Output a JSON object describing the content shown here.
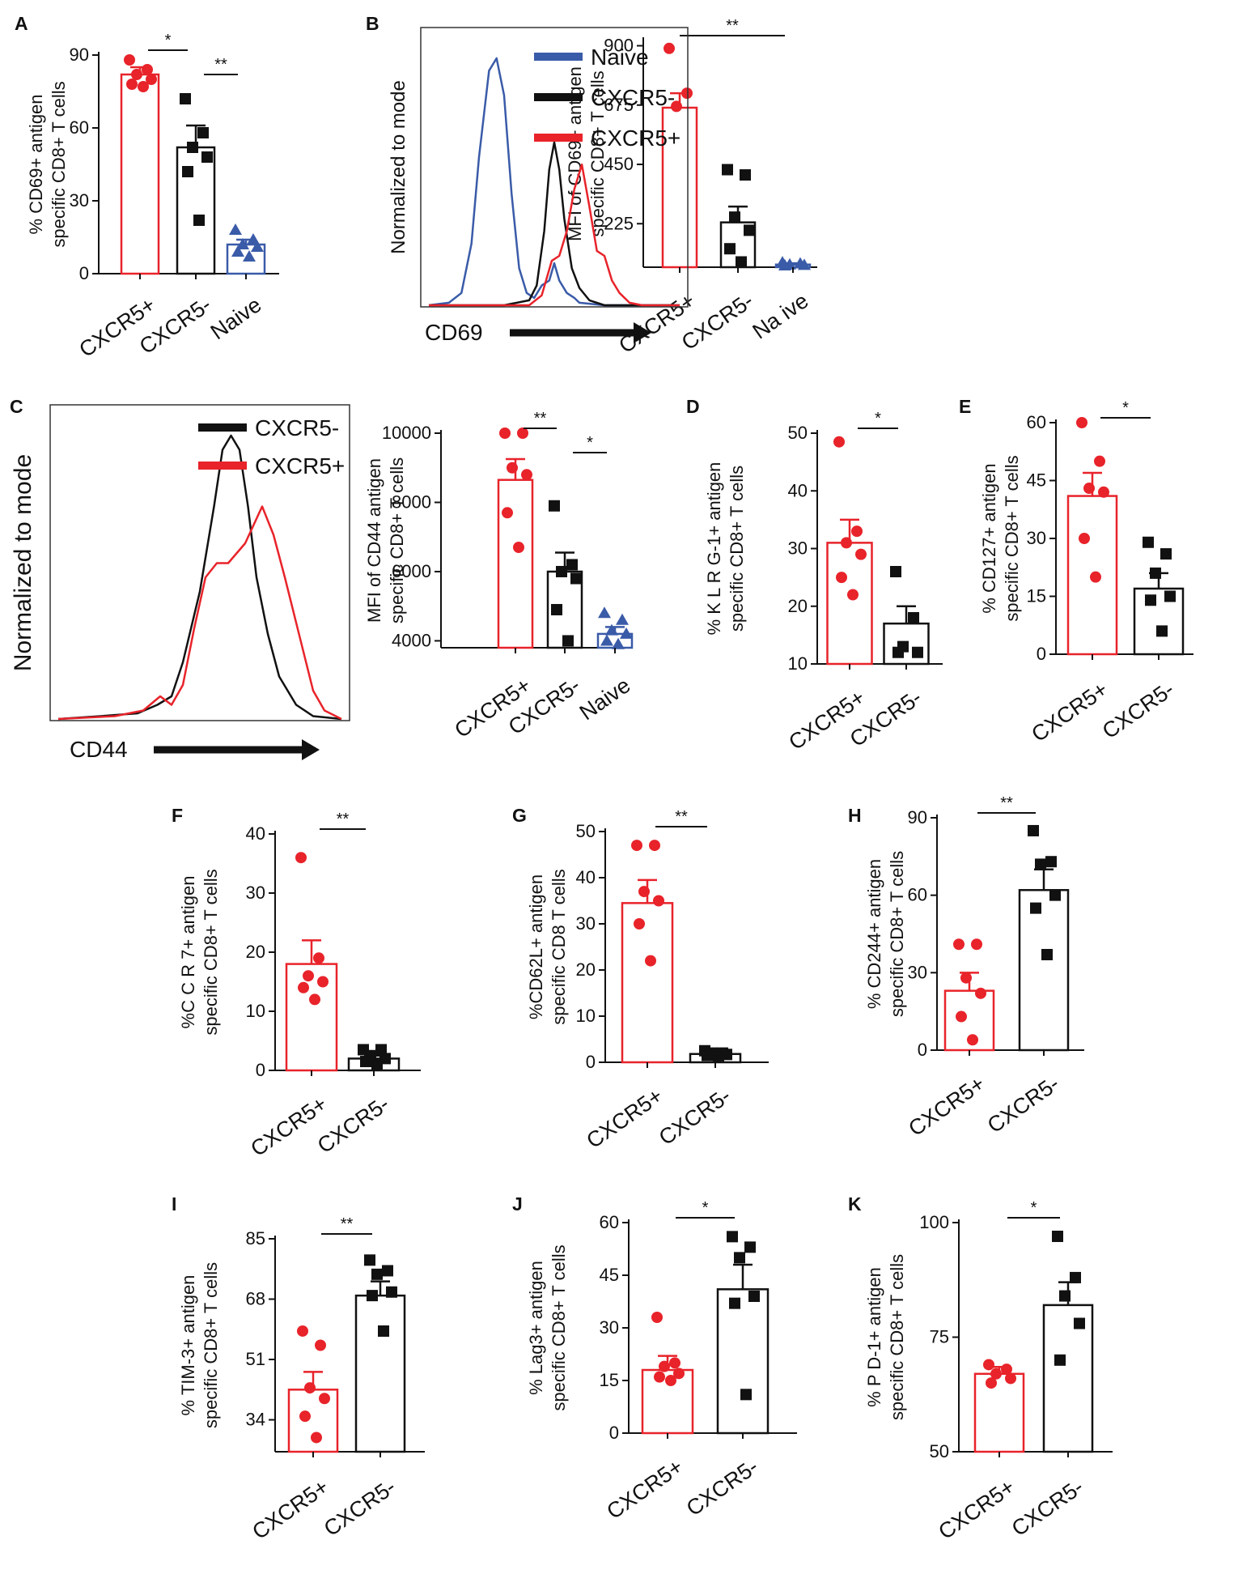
{
  "colors": {
    "red": "#e8232a",
    "black": "#111111",
    "blue": "#3a5ba8"
  },
  "chart_data": [
    {
      "panel": "A",
      "type": "bar",
      "ylabel": [
        "% CD69+ antigen",
        "specific CD8+ T cells"
      ],
      "ylim": [
        0,
        90
      ],
      "yticks": [
        0,
        30,
        60,
        90
      ],
      "categories": [
        "CXCR5+",
        "CXCR5-",
        "Naive"
      ],
      "means": [
        82,
        52,
        12
      ],
      "sems": [
        3,
        9,
        2
      ],
      "colors": [
        "red",
        "black",
        "blue"
      ],
      "markers": [
        "circle",
        "square",
        "triangle"
      ],
      "points": [
        [
          88,
          84,
          82,
          80,
          78,
          77
        ],
        [
          72,
          58,
          52,
          48,
          42,
          22
        ],
        [
          18,
          14,
          12,
          11,
          9,
          7
        ]
      ],
      "significance": [
        {
          "pair": [
            0,
            1
          ],
          "label": "*"
        },
        {
          "pair": [
            1,
            2
          ],
          "label": "**"
        }
      ]
    },
    {
      "panel": "B",
      "type": "bar",
      "ylabel": [
        "MFI of CD69+ antigen",
        "specific CD8+ T cells"
      ],
      "ylim": [
        60,
        920
      ],
      "yticks": [
        225,
        450,
        675,
        900
      ],
      "categories": [
        "CXCR5+",
        "CXCR5-",
        "Na ive"
      ],
      "means": [
        665,
        230,
        70
      ],
      "sems": [
        55,
        60,
        5
      ],
      "colors": [
        "red",
        "black",
        "blue"
      ],
      "markers": [
        "circle",
        "square",
        "triangle"
      ],
      "points": [
        [
          890,
          720,
          670
        ],
        [
          430,
          410,
          250,
          200,
          130,
          80
        ],
        [
          78,
          74,
          70,
          68,
          66
        ]
      ],
      "significance": [
        {
          "pair": [
            0,
            2
          ],
          "label": "**"
        }
      ]
    },
    {
      "panel": "C",
      "type": "bar",
      "ylabel": [
        "MFI of CD44 antigen",
        "specific CD8+ T cells"
      ],
      "ylim": [
        3800,
        10000
      ],
      "yticks": [
        4000,
        6000,
        8000,
        10000
      ],
      "categories": [
        "CXCR5+",
        "CXCR5-",
        "Naive"
      ],
      "means": [
        8650,
        6000,
        4200
      ],
      "sems": [
        600,
        550,
        200
      ],
      "colors": [
        "red",
        "black",
        "blue"
      ],
      "markers": [
        "circle",
        "square",
        "triangle"
      ],
      "points": [
        [
          10000,
          10000,
          9000,
          8800,
          7700,
          6700
        ],
        [
          7900,
          6200,
          6000,
          5800,
          4900,
          4000
        ],
        [
          4800,
          4600,
          4300,
          4200,
          4000,
          3900
        ]
      ],
      "significance": [
        {
          "pair": [
            0,
            1
          ],
          "label": "**"
        },
        {
          "pair": [
            1,
            2
          ],
          "label": "*"
        }
      ]
    },
    {
      "panel": "D",
      "type": "bar",
      "ylabel": [
        "% K L R G-1+ antigen",
        "specific CD8+ T cells"
      ],
      "ylim": [
        10,
        50
      ],
      "yticks": [
        10,
        20,
        30,
        40,
        50
      ],
      "categories": [
        "CXCR5+",
        "CXCR5-"
      ],
      "means": [
        31,
        17
      ],
      "sems": [
        4,
        3
      ],
      "colors": [
        "red",
        "black"
      ],
      "markers": [
        "circle",
        "square"
      ],
      "points": [
        [
          48.5,
          33,
          31,
          29,
          25,
          22
        ],
        [
          26,
          18,
          13,
          12,
          12
        ]
      ],
      "significance": [
        {
          "pair": [
            0,
            1
          ],
          "label": "*"
        }
      ]
    },
    {
      "panel": "E",
      "type": "bar",
      "ylabel": [
        "% CD127+ antigen",
        "specific CD8+ T cells"
      ],
      "ylim": [
        0,
        60
      ],
      "yticks": [
        0,
        15,
        30,
        45,
        60
      ],
      "categories": [
        "CXCR5+",
        "CXCR5-"
      ],
      "means": [
        41,
        17
      ],
      "sems": [
        6,
        4
      ],
      "colors": [
        "red",
        "black"
      ],
      "markers": [
        "circle",
        "square"
      ],
      "points": [
        [
          60,
          50,
          43,
          42,
          30,
          20
        ],
        [
          29,
          26,
          21,
          15,
          14,
          6
        ]
      ],
      "significance": [
        {
          "pair": [
            0,
            1
          ],
          "label": "*"
        }
      ]
    },
    {
      "panel": "F",
      "type": "bar",
      "ylabel": [
        "%C C R 7+ antigen",
        "specific CD8+ T cells"
      ],
      "ylim": [
        0,
        40
      ],
      "yticks": [
        0,
        10,
        20,
        30,
        40
      ],
      "categories": [
        "CXCR5+",
        "CXCR5-"
      ],
      "means": [
        18,
        2
      ],
      "sems": [
        4,
        0.5
      ],
      "colors": [
        "red",
        "black"
      ],
      "markers": [
        "circle",
        "square"
      ],
      "points": [
        [
          36,
          19,
          16,
          15,
          14,
          12
        ],
        [
          3.5,
          3.5,
          2.5,
          2,
          1.5,
          1
        ]
      ],
      "significance": [
        {
          "pair": [
            0,
            1
          ],
          "label": "**"
        }
      ]
    },
    {
      "panel": "G",
      "type": "bar",
      "ylabel": [
        "%CD62L+ antigen",
        "specific CD8 T cells"
      ],
      "ylim": [
        0,
        50
      ],
      "yticks": [
        0,
        10,
        20,
        30,
        40,
        50
      ],
      "categories": [
        "CXCR5+",
        "CXCR5-"
      ],
      "means": [
        34.5,
        1.8
      ],
      "sems": [
        5,
        0.3
      ],
      "colors": [
        "red",
        "black"
      ],
      "markers": [
        "circle",
        "square"
      ],
      "points": [
        [
          47,
          47,
          37,
          35,
          30,
          22
        ],
        [
          2.5,
          2,
          2,
          1.7,
          1.5,
          1.2
        ]
      ],
      "significance": [
        {
          "pair": [
            0,
            1
          ],
          "label": "**"
        }
      ]
    },
    {
      "panel": "H",
      "type": "bar",
      "ylabel": [
        "% CD244+ antigen",
        "specific CD8+ T cells"
      ],
      "ylim": [
        0,
        90
      ],
      "yticks": [
        0,
        30,
        60,
        90
      ],
      "categories": [
        "CXCR5+",
        "CXCR5-"
      ],
      "means": [
        23,
        62
      ],
      "sems": [
        7,
        8
      ],
      "colors": [
        "red",
        "black"
      ],
      "markers": [
        "circle",
        "square"
      ],
      "points": [
        [
          41,
          41,
          28,
          22,
          13,
          4
        ],
        [
          85,
          73,
          72,
          60,
          55,
          37
        ]
      ],
      "significance": [
        {
          "pair": [
            0,
            1
          ],
          "label": "**"
        }
      ]
    },
    {
      "panel": "I",
      "type": "bar",
      "ylabel": [
        "% TIM-3+ antigen",
        "specific CD8+ T cells"
      ],
      "ylim": [
        25,
        85
      ],
      "yticks": [
        34,
        51,
        68,
        85
      ],
      "categories": [
        "CXCR5+",
        "CXCR5-"
      ],
      "means": [
        42.5,
        69
      ],
      "sems": [
        5,
        4
      ],
      "colors": [
        "red",
        "black"
      ],
      "markers": [
        "circle",
        "square"
      ],
      "points": [
        [
          59,
          55,
          43,
          40,
          35,
          29
        ],
        [
          79,
          76,
          75,
          70,
          69,
          59
        ]
      ],
      "significance": [
        {
          "pair": [
            0,
            1
          ],
          "label": "**"
        }
      ]
    },
    {
      "panel": "J",
      "type": "bar",
      "ylabel": [
        "% Lag3+ antigen",
        "specific CD8+ T cells"
      ],
      "ylim": [
        0,
        60
      ],
      "yticks": [
        0,
        15,
        30,
        45,
        60
      ],
      "categories": [
        "CXCR5+",
        "CXCR5-"
      ],
      "means": [
        18,
        41
      ],
      "sems": [
        4,
        7
      ],
      "colors": [
        "red",
        "black"
      ],
      "markers": [
        "circle",
        "square"
      ],
      "points": [
        [
          33,
          20,
          19,
          17,
          16,
          15
        ],
        [
          56,
          53,
          50,
          39,
          37,
          11
        ]
      ],
      "significance": [
        {
          "pair": [
            0,
            1
          ],
          "label": "*"
        }
      ]
    },
    {
      "panel": "K",
      "type": "bar",
      "ylabel": [
        "% P D-1+ antigen",
        "specific CD8+ T cells"
      ],
      "ylim": [
        50,
        100
      ],
      "yticks": [
        50,
        75,
        100
      ],
      "categories": [
        "CXCR5+",
        "CXCR5-"
      ],
      "means": [
        67,
        82
      ],
      "sems": [
        1.5,
        5
      ],
      "colors": [
        "red",
        "black"
      ],
      "markers": [
        "circle",
        "square"
      ],
      "points": [
        [
          69,
          68,
          67,
          66,
          65
        ],
        [
          97,
          88,
          84,
          78,
          70
        ]
      ],
      "significance": [
        {
          "pair": [
            0,
            1
          ],
          "label": "*"
        }
      ]
    },
    {
      "panel": "B-hist",
      "type": "line",
      "ylabel": "Normalized to mode",
      "xlabel": "CD69",
      "legend": [
        "Naive",
        "CXCR5-",
        "CXCR5+"
      ],
      "series": [
        {
          "name": "Naive",
          "color": "blue",
          "x": [
            0.0,
            0.08,
            0.13,
            0.17,
            0.2,
            0.24,
            0.27,
            0.3,
            0.33,
            0.36,
            0.39,
            0.42,
            0.45,
            0.48,
            0.5,
            0.52,
            0.55,
            0.58,
            0.6,
            0.7,
            1.0
          ],
          "y": [
            0,
            0.01,
            0.05,
            0.25,
            0.6,
            0.95,
            1.0,
            0.85,
            0.45,
            0.15,
            0.05,
            0.03,
            0.08,
            0.1,
            0.17,
            0.1,
            0.05,
            0.03,
            0.01,
            0.0,
            0
          ]
        },
        {
          "name": "CXCR5-",
          "color": "black",
          "x": [
            0.0,
            0.3,
            0.4,
            0.43,
            0.46,
            0.48,
            0.5,
            0.52,
            0.54,
            0.57,
            0.6,
            0.64,
            0.7,
            1.0
          ],
          "y": [
            0,
            0,
            0.02,
            0.08,
            0.3,
            0.55,
            0.66,
            0.55,
            0.35,
            0.15,
            0.07,
            0.02,
            0,
            0
          ]
        },
        {
          "name": "CXCR5+",
          "color": "red",
          "x": [
            0.0,
            0.4,
            0.45,
            0.49,
            0.52,
            0.55,
            0.58,
            0.61,
            0.64,
            0.67,
            0.7,
            0.73,
            0.76,
            0.8,
            0.85,
            1.0
          ],
          "y": [
            0,
            0,
            0.04,
            0.18,
            0.2,
            0.3,
            0.47,
            0.57,
            0.4,
            0.22,
            0.2,
            0.1,
            0.05,
            0.01,
            0,
            0
          ]
        }
      ]
    },
    {
      "panel": "C-hist",
      "type": "line",
      "ylabel": "Normalized to mode",
      "xlabel": "CD44",
      "legend": [
        "CXCR5-",
        "CXCR5+"
      ],
      "series": [
        {
          "name": "CXCR5-",
          "color": "black",
          "x": [
            0.0,
            0.15,
            0.28,
            0.35,
            0.4,
            0.44,
            0.5,
            0.55,
            0.58,
            0.61,
            0.64,
            0.67,
            0.7,
            0.74,
            0.78,
            0.84,
            0.9,
            1.0
          ],
          "y": [
            0,
            0.01,
            0.02,
            0.05,
            0.08,
            0.2,
            0.45,
            0.75,
            0.95,
            1.0,
            0.95,
            0.75,
            0.5,
            0.3,
            0.15,
            0.05,
            0.01,
            0
          ]
        },
        {
          "name": "CXCR5+",
          "color": "red",
          "x": [
            0.0,
            0.2,
            0.3,
            0.36,
            0.4,
            0.44,
            0.48,
            0.52,
            0.56,
            0.6,
            0.66,
            0.72,
            0.76,
            0.8,
            0.85,
            0.9,
            0.94,
            1.0
          ],
          "y": [
            0,
            0.01,
            0.03,
            0.08,
            0.05,
            0.12,
            0.32,
            0.5,
            0.55,
            0.55,
            0.62,
            0.75,
            0.65,
            0.5,
            0.3,
            0.1,
            0.03,
            0
          ]
        }
      ]
    }
  ]
}
